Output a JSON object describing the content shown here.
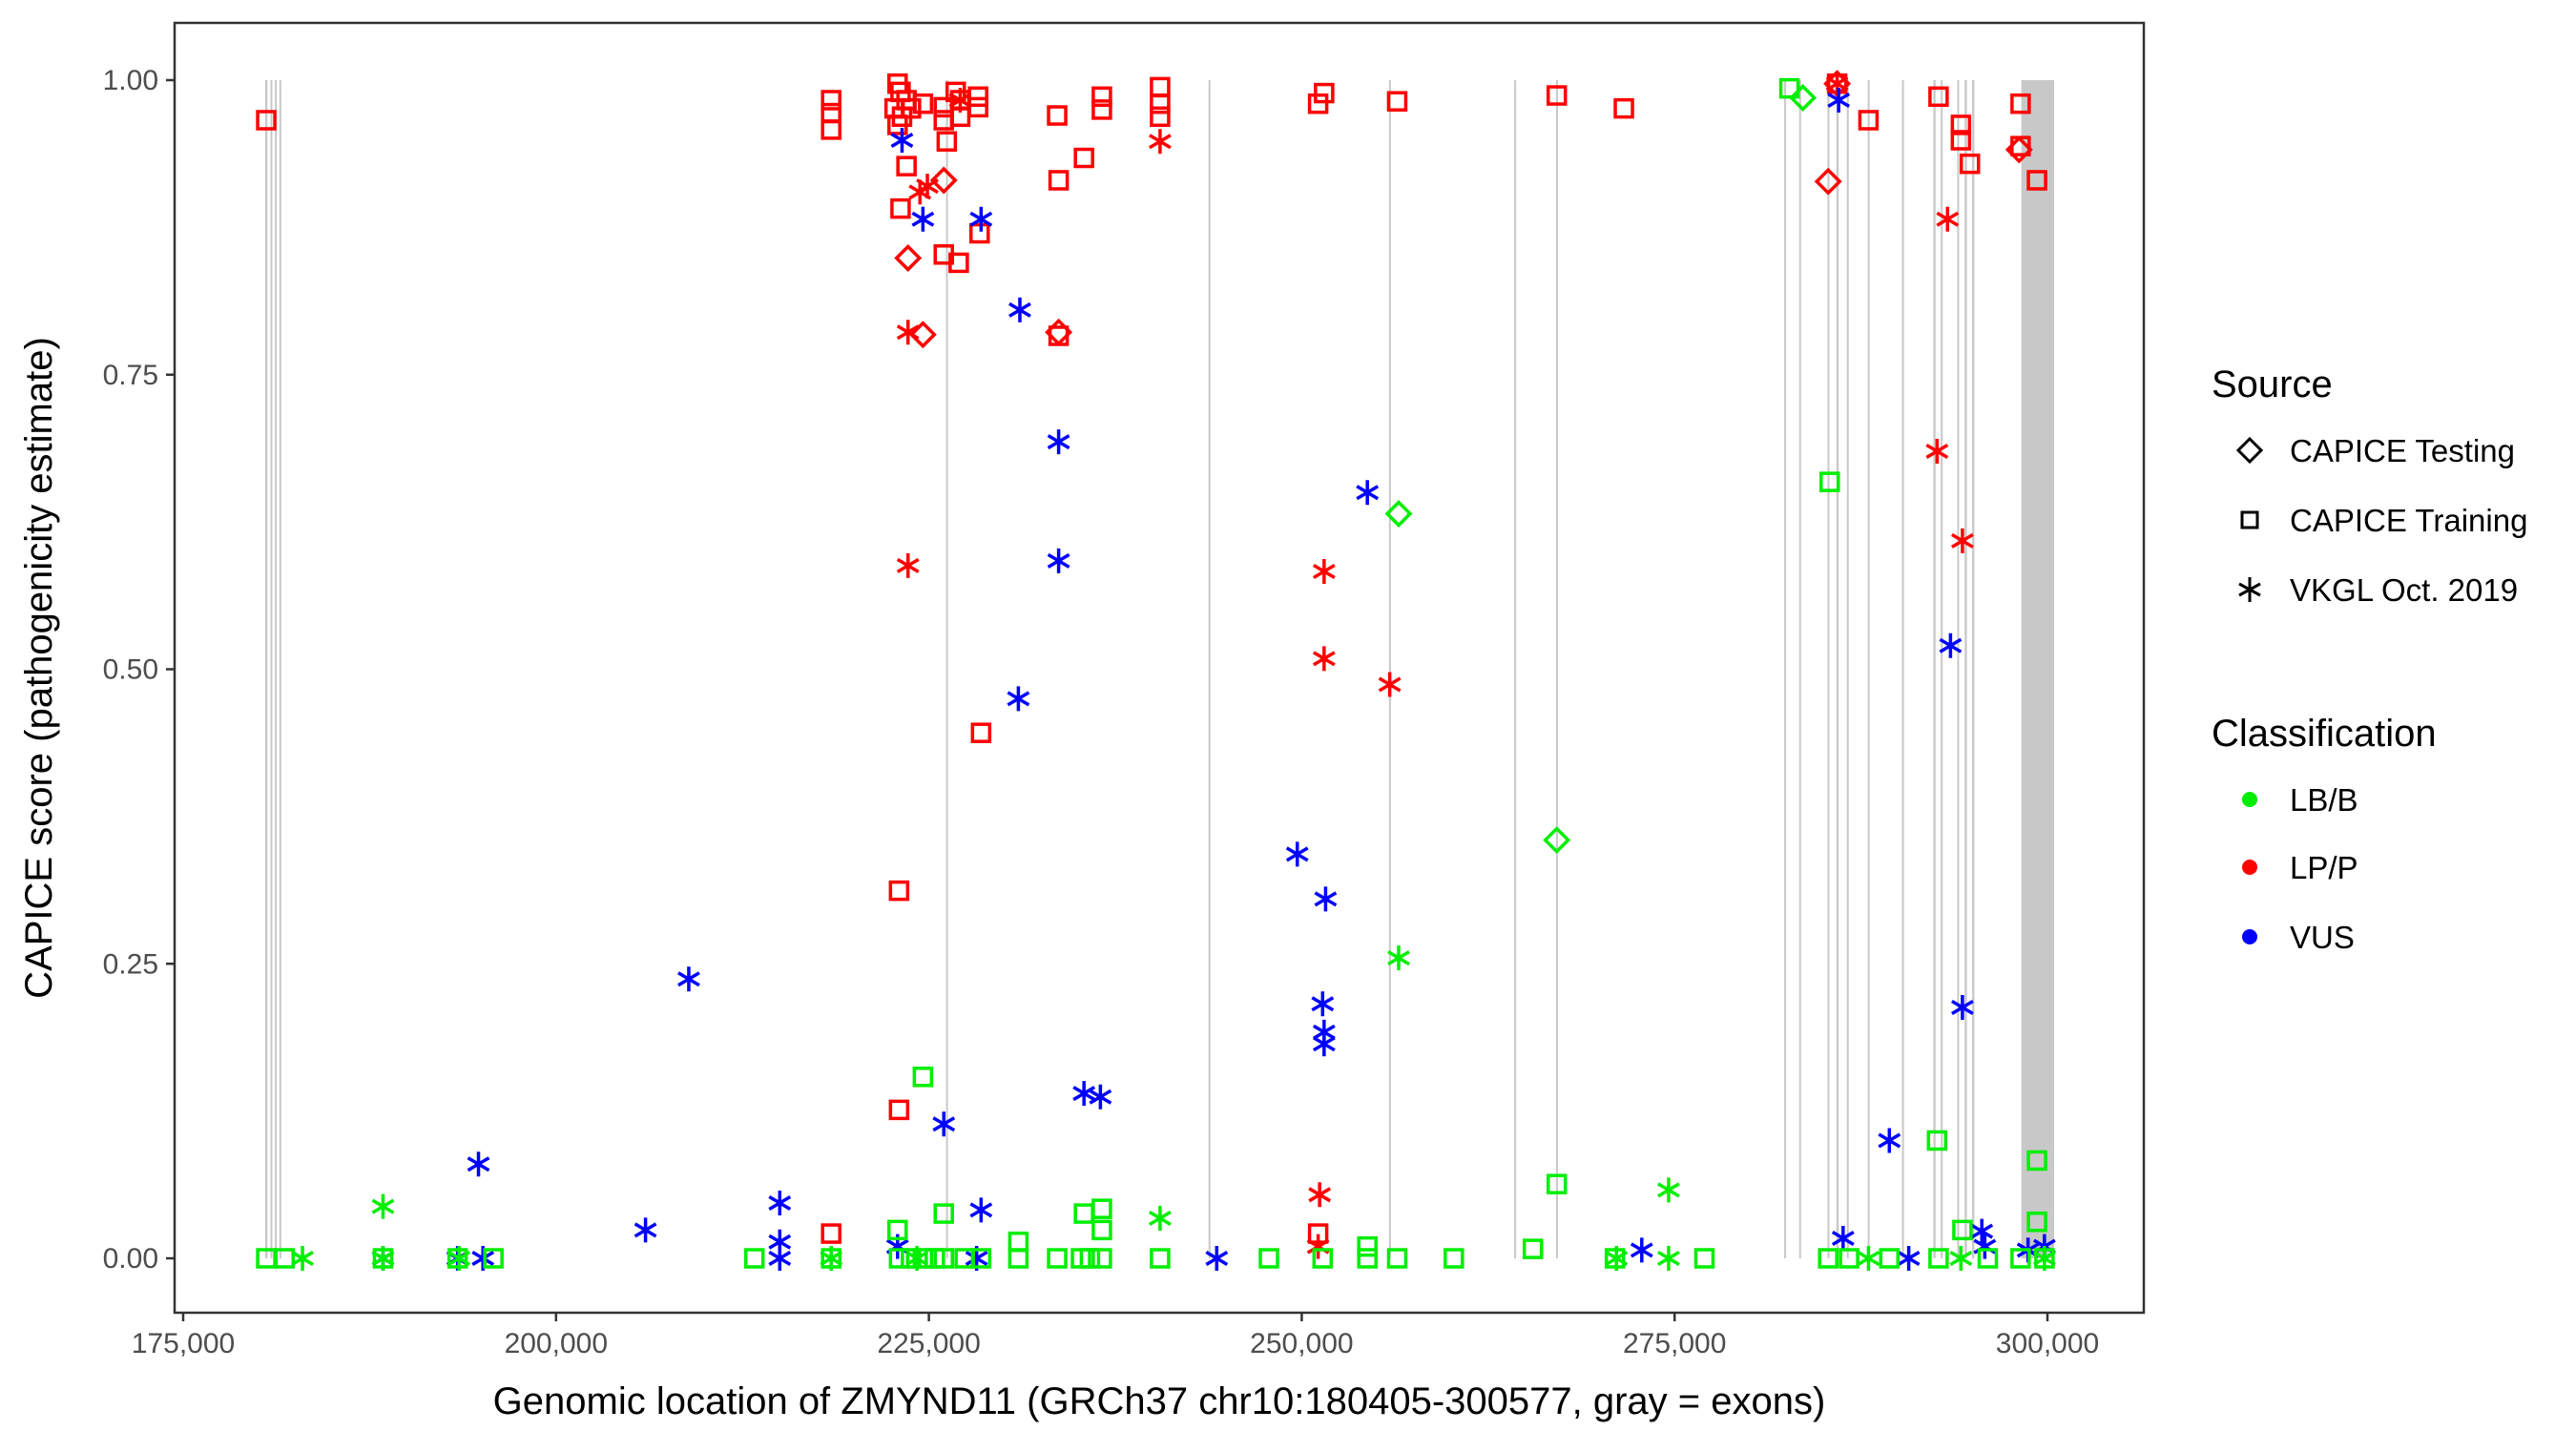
{
  "chart_data": {
    "type": "scatter",
    "title": "",
    "xlabel": "Genomic location of ZMYND11 (GRCh37 chr10:180405-300577, gray = exons)",
    "ylabel": "CAPICE score (pathogenicity estimate)",
    "xlim": [
      172500,
      302500
    ],
    "ylim": [
      -0.045,
      1.05
    ],
    "x_ticks": [
      175000,
      200000,
      225000,
      250000,
      275000,
      300000
    ],
    "x_tick_labels": [
      "175,000",
      "200,000",
      "225,000",
      "250,000",
      "275,000",
      "300,000"
    ],
    "y_ticks": [
      0,
      0.25,
      0.5,
      0.75,
      1.0
    ],
    "y_tick_labels": [
      "0.00",
      "0.25",
      "0.50",
      "0.75",
      "1.00"
    ],
    "grid": false,
    "exon_color": "#c8c8c8",
    "exons": [
      [
        180500,
        180650
      ],
      [
        180850,
        180950
      ],
      [
        181150,
        181250
      ],
      [
        181450,
        181550
      ],
      [
        226150,
        226250
      ],
      [
        243750,
        243850
      ],
      [
        255850,
        255950
      ],
      [
        264250,
        264350
      ],
      [
        267050,
        267150
      ],
      [
        282350,
        282450
      ],
      [
        283350,
        283450
      ],
      [
        285250,
        285350
      ],
      [
        285850,
        286000
      ],
      [
        286550,
        286650
      ],
      [
        287950,
        288050
      ],
      [
        290250,
        290350
      ],
      [
        292350,
        292500
      ],
      [
        292850,
        292950
      ],
      [
        293950,
        294050
      ],
      [
        294450,
        294600
      ],
      [
        294950,
        295100
      ],
      [
        298250,
        300450
      ]
    ],
    "legend_position": "right",
    "legends": [
      {
        "title": "Source",
        "items": [
          {
            "label": "CAPICE Testing",
            "shape": "diamond"
          },
          {
            "label": "CAPICE Training",
            "shape": "square"
          },
          {
            "label": "VKGL Oct. 2019",
            "shape": "asterisk"
          }
        ]
      },
      {
        "title": "Classification",
        "items": [
          {
            "label": "LB/B",
            "color": "#00ee00"
          },
          {
            "label": "LP/P",
            "color": "#ff0000"
          },
          {
            "label": "VUS",
            "color": "#0000ff"
          }
        ]
      }
    ],
    "point_fields": [
      "position",
      "score",
      "source",
      "classification"
    ],
    "points": [
      [
        180570,
        0.966,
        "CAPICE Training",
        "LP/P"
      ],
      [
        218450,
        0.983,
        "CAPICE Training",
        "LP/P"
      ],
      [
        218450,
        0.972,
        "CAPICE Training",
        "LP/P"
      ],
      [
        218450,
        0.958,
        "CAPICE Training",
        "LP/P"
      ],
      [
        222900,
        0.997,
        "CAPICE Training",
        "LP/P"
      ],
      [
        223100,
        0.99,
        "CAPICE Training",
        "LP/P"
      ],
      [
        223500,
        0.983,
        "CAPICE Training",
        "LP/P"
      ],
      [
        222700,
        0.976,
        "CAPICE Training",
        "LP/P"
      ],
      [
        223200,
        0.969,
        "CAPICE Training",
        "LP/P"
      ],
      [
        223800,
        0.976,
        "CAPICE Training",
        "LP/P"
      ],
      [
        222900,
        0.962,
        "CAPICE Training",
        "LP/P"
      ],
      [
        224600,
        0.98,
        "CAPICE Training",
        "LP/P"
      ],
      [
        226000,
        0.977,
        "CAPICE Training",
        "LP/P"
      ],
      [
        226000,
        0.966,
        "CAPICE Training",
        "LP/P"
      ],
      [
        226200,
        0.948,
        "CAPICE Training",
        "LP/P"
      ],
      [
        226800,
        0.99,
        "CAPICE Training",
        "LP/P"
      ],
      [
        227100,
        0.983,
        "CAPICE Training",
        "LP/P"
      ],
      [
        227100,
        0.969,
        "CAPICE Training",
        "LP/P"
      ],
      [
        228300,
        0.986,
        "CAPICE Training",
        "LP/P"
      ],
      [
        228300,
        0.977,
        "CAPICE Training",
        "LP/P"
      ],
      [
        223500,
        0.927,
        "CAPICE Training",
        "LP/P"
      ],
      [
        223100,
        0.891,
        "CAPICE Training",
        "LP/P"
      ],
      [
        226000,
        0.852,
        "CAPICE Training",
        "LP/P"
      ],
      [
        227000,
        0.845,
        "CAPICE Training",
        "LP/P"
      ],
      [
        228400,
        0.87,
        "CAPICE Training",
        "LP/P"
      ],
      [
        233700,
        0.783,
        "CAPICE Training",
        "LP/P"
      ],
      [
        233600,
        0.97,
        "CAPICE Training",
        "LP/P"
      ],
      [
        233700,
        0.915,
        "CAPICE Training",
        "LP/P"
      ],
      [
        235400,
        0.934,
        "CAPICE Training",
        "LP/P"
      ],
      [
        236600,
        0.986,
        "CAPICE Training",
        "LP/P"
      ],
      [
        236600,
        0.975,
        "CAPICE Training",
        "LP/P"
      ],
      [
        240500,
        0.994,
        "CAPICE Training",
        "LP/P"
      ],
      [
        240500,
        0.98,
        "CAPICE Training",
        "LP/P"
      ],
      [
        240500,
        0.969,
        "CAPICE Training",
        "LP/P"
      ],
      [
        251500,
        0.989,
        "CAPICE Training",
        "LP/P"
      ],
      [
        251100,
        0.98,
        "CAPICE Training",
        "LP/P"
      ],
      [
        256400,
        0.982,
        "CAPICE Training",
        "LP/P"
      ],
      [
        267100,
        0.987,
        "CAPICE Training",
        "LP/P"
      ],
      [
        271600,
        0.976,
        "CAPICE Training",
        "LP/P"
      ],
      [
        288000,
        0.966,
        "CAPICE Training",
        "LP/P"
      ],
      [
        292700,
        0.986,
        "CAPICE Training",
        "LP/P"
      ],
      [
        294200,
        0.962,
        "CAPICE Training",
        "LP/P"
      ],
      [
        294200,
        0.949,
        "CAPICE Training",
        "LP/P"
      ],
      [
        294800,
        0.929,
        "CAPICE Training",
        "LP/P"
      ],
      [
        298200,
        0.98,
        "CAPICE Training",
        "LP/P"
      ],
      [
        298200,
        0.944,
        "CAPICE Training",
        "LP/P"
      ],
      [
        299300,
        0.915,
        "CAPICE Training",
        "LP/P"
      ],
      [
        228500,
        0.446,
        "CAPICE Training",
        "LP/P"
      ],
      [
        223000,
        0.312,
        "CAPICE Training",
        "LP/P"
      ],
      [
        223000,
        0.126,
        "CAPICE Training",
        "LP/P"
      ],
      [
        218450,
        0.021,
        "CAPICE Training",
        "LP/P"
      ],
      [
        251100,
        0.021,
        "CAPICE Training",
        "LP/P"
      ],
      [
        285900,
        0.997,
        "CAPICE Training",
        "LP/P"
      ],
      [
        223600,
        0.849,
        "CAPICE Testing",
        "LP/P"
      ],
      [
        224600,
        0.784,
        "CAPICE Testing",
        "LP/P"
      ],
      [
        226000,
        0.915,
        "CAPICE Testing",
        "LP/P"
      ],
      [
        233700,
        0.786,
        "CAPICE Testing",
        "LP/P"
      ],
      [
        285300,
        0.914,
        "CAPICE Testing",
        "LP/P"
      ],
      [
        285900,
        0.997,
        "CAPICE Testing",
        "LP/P"
      ],
      [
        298100,
        0.941,
        "CAPICE Testing",
        "LP/P"
      ],
      [
        223600,
        0.786,
        "VKGL Oct. 2019",
        "LP/P"
      ],
      [
        224400,
        0.905,
        "VKGL Oct. 2019",
        "LP/P"
      ],
      [
        224900,
        0.91,
        "VKGL Oct. 2019",
        "LP/P"
      ],
      [
        227100,
        0.983,
        "VKGL Oct. 2019",
        "LP/P"
      ],
      [
        240500,
        0.948,
        "VKGL Oct. 2019",
        "LP/P"
      ],
      [
        223600,
        0.588,
        "VKGL Oct. 2019",
        "LP/P"
      ],
      [
        251500,
        0.583,
        "VKGL Oct. 2019",
        "LP/P"
      ],
      [
        251500,
        0.509,
        "VKGL Oct. 2019",
        "LP/P"
      ],
      [
        255900,
        0.487,
        "VKGL Oct. 2019",
        "LP/P"
      ],
      [
        251200,
        0.054,
        "VKGL Oct. 2019",
        "LP/P"
      ],
      [
        251100,
        0.01,
        "VKGL Oct. 2019",
        "LP/P"
      ],
      [
        292600,
        0.685,
        "VKGL Oct. 2019",
        "LP/P"
      ],
      [
        293300,
        0.882,
        "VKGL Oct. 2019",
        "LP/P"
      ],
      [
        294300,
        0.609,
        "VKGL Oct. 2019",
        "LP/P"
      ],
      [
        285900,
        0.997,
        "VKGL Oct. 2019",
        "LP/P"
      ],
      [
        223200,
        0.949,
        "VKGL Oct. 2019",
        "VUS"
      ],
      [
        224600,
        0.882,
        "VKGL Oct. 2019",
        "VUS"
      ],
      [
        228500,
        0.882,
        "VKGL Oct. 2019",
        "VUS"
      ],
      [
        231100,
        0.805,
        "VKGL Oct. 2019",
        "VUS"
      ],
      [
        233700,
        0.693,
        "VKGL Oct. 2019",
        "VUS"
      ],
      [
        233700,
        0.592,
        "VKGL Oct. 2019",
        "VUS"
      ],
      [
        231000,
        0.475,
        "VKGL Oct. 2019",
        "VUS"
      ],
      [
        254400,
        0.65,
        "VKGL Oct. 2019",
        "VUS"
      ],
      [
        249700,
        0.343,
        "VKGL Oct. 2019",
        "VUS"
      ],
      [
        251600,
        0.305,
        "VKGL Oct. 2019",
        "VUS"
      ],
      [
        251400,
        0.216,
        "VKGL Oct. 2019",
        "VUS"
      ],
      [
        251500,
        0.192,
        "VKGL Oct. 2019",
        "VUS"
      ],
      [
        251500,
        0.182,
        "VKGL Oct. 2019",
        "VUS"
      ],
      [
        208900,
        0.237,
        "VKGL Oct. 2019",
        "VUS"
      ],
      [
        194800,
        0.08,
        "VKGL Oct. 2019",
        "VUS"
      ],
      [
        206000,
        0.024,
        "VKGL Oct. 2019",
        "VUS"
      ],
      [
        215000,
        0.047,
        "VKGL Oct. 2019",
        "VUS"
      ],
      [
        215000,
        0.014,
        "VKGL Oct. 2019",
        "VUS"
      ],
      [
        215000,
        0.0,
        "VKGL Oct. 2019",
        "VUS"
      ],
      [
        226000,
        0.114,
        "VKGL Oct. 2019",
        "VUS"
      ],
      [
        235400,
        0.14,
        "VKGL Oct. 2019",
        "VUS"
      ],
      [
        236500,
        0.137,
        "VKGL Oct. 2019",
        "VUS"
      ],
      [
        228500,
        0.041,
        "VKGL Oct. 2019",
        "VUS"
      ],
      [
        222900,
        0.01,
        "VKGL Oct. 2019",
        "VUS"
      ],
      [
        188400,
        0.0,
        "VKGL Oct. 2019",
        "VUS"
      ],
      [
        193400,
        0.0,
        "VKGL Oct. 2019",
        "VUS"
      ],
      [
        195100,
        0.0,
        "VKGL Oct. 2019",
        "VUS"
      ],
      [
        228200,
        0.0,
        "VKGL Oct. 2019",
        "VUS"
      ],
      [
        244300,
        0.0,
        "VKGL Oct. 2019",
        "VUS"
      ],
      [
        272800,
        0.007,
        "VKGL Oct. 2019",
        "VUS"
      ],
      [
        286000,
        0.983,
        "VKGL Oct. 2019",
        "VUS"
      ],
      [
        293500,
        0.52,
        "VKGL Oct. 2019",
        "VUS"
      ],
      [
        294300,
        0.213,
        "VKGL Oct. 2019",
        "VUS"
      ],
      [
        289400,
        0.1,
        "VKGL Oct. 2019",
        "VUS"
      ],
      [
        286300,
        0.017,
        "VKGL Oct. 2019",
        "VUS"
      ],
      [
        290700,
        0.0,
        "VKGL Oct. 2019",
        "VUS"
      ],
      [
        295600,
        0.023,
        "VKGL Oct. 2019",
        "VUS"
      ],
      [
        295800,
        0.01,
        "VKGL Oct. 2019",
        "VUS"
      ],
      [
        298700,
        0.007,
        "VKGL Oct. 2019",
        "VUS"
      ],
      [
        299800,
        0.01,
        "VKGL Oct. 2019",
        "VUS"
      ],
      [
        282700,
        0.993,
        "CAPICE Training",
        "LB/B"
      ],
      [
        285400,
        0.659,
        "CAPICE Training",
        "LB/B"
      ],
      [
        267100,
        0.063,
        "CAPICE Training",
        "LB/B"
      ],
      [
        292600,
        0.1,
        "CAPICE Training",
        "LB/B"
      ],
      [
        299300,
        0.083,
        "CAPICE Training",
        "LB/B"
      ],
      [
        299300,
        0.031,
        "CAPICE Training",
        "LB/B"
      ],
      [
        294300,
        0.024,
        "CAPICE Training",
        "LB/B"
      ],
      [
        224600,
        0.154,
        "CAPICE Training",
        "LB/B"
      ],
      [
        226000,
        0.038,
        "CAPICE Training",
        "LB/B"
      ],
      [
        222900,
        0.024,
        "CAPICE Training",
        "LB/B"
      ],
      [
        235400,
        0.038,
        "CAPICE Training",
        "LB/B"
      ],
      [
        236600,
        0.042,
        "CAPICE Training",
        "LB/B"
      ],
      [
        236600,
        0.024,
        "CAPICE Training",
        "LB/B"
      ],
      [
        231000,
        0.014,
        "CAPICE Training",
        "LB/B"
      ],
      [
        265500,
        0.008,
        "CAPICE Training",
        "LB/B"
      ],
      [
        254400,
        0.01,
        "CAPICE Training",
        "LB/B"
      ],
      [
        180570,
        0.0,
        "CAPICE Training",
        "LB/B"
      ],
      [
        181800,
        0.0,
        "CAPICE Training",
        "LB/B"
      ],
      [
        188400,
        0.0,
        "CAPICE Training",
        "LB/B"
      ],
      [
        193400,
        0.0,
        "CAPICE Training",
        "LB/B"
      ],
      [
        195800,
        0.0,
        "CAPICE Training",
        "LB/B"
      ],
      [
        213300,
        0.0,
        "CAPICE Training",
        "LB/B"
      ],
      [
        218450,
        0.0,
        "CAPICE Training",
        "LB/B"
      ],
      [
        223000,
        0.0,
        "CAPICE Training",
        "LB/B"
      ],
      [
        223800,
        0.0,
        "CAPICE Training",
        "LB/B"
      ],
      [
        224600,
        0.0,
        "CAPICE Training",
        "LB/B"
      ],
      [
        225400,
        0.0,
        "CAPICE Training",
        "LB/B"
      ],
      [
        226000,
        0.0,
        "CAPICE Training",
        "LB/B"
      ],
      [
        227400,
        0.0,
        "CAPICE Training",
        "LB/B"
      ],
      [
        228500,
        0.0,
        "CAPICE Training",
        "LB/B"
      ],
      [
        231000,
        0.0,
        "CAPICE Training",
        "LB/B"
      ],
      [
        233600,
        0.0,
        "CAPICE Training",
        "LB/B"
      ],
      [
        235200,
        0.0,
        "CAPICE Training",
        "LB/B"
      ],
      [
        235800,
        0.0,
        "CAPICE Training",
        "LB/B"
      ],
      [
        236600,
        0.0,
        "CAPICE Training",
        "LB/B"
      ],
      [
        240500,
        0.0,
        "CAPICE Training",
        "LB/B"
      ],
      [
        247800,
        0.0,
        "CAPICE Training",
        "LB/B"
      ],
      [
        251400,
        0.0,
        "CAPICE Training",
        "LB/B"
      ],
      [
        254400,
        0.0,
        "CAPICE Training",
        "LB/B"
      ],
      [
        256400,
        0.0,
        "CAPICE Training",
        "LB/B"
      ],
      [
        260200,
        0.0,
        "CAPICE Training",
        "LB/B"
      ],
      [
        271000,
        0.0,
        "CAPICE Training",
        "LB/B"
      ],
      [
        277000,
        0.0,
        "CAPICE Training",
        "LB/B"
      ],
      [
        285300,
        0.0,
        "CAPICE Training",
        "LB/B"
      ],
      [
        286700,
        0.0,
        "CAPICE Training",
        "LB/B"
      ],
      [
        289400,
        0.0,
        "CAPICE Training",
        "LB/B"
      ],
      [
        292700,
        0.0,
        "CAPICE Training",
        "LB/B"
      ],
      [
        296000,
        0.0,
        "CAPICE Training",
        "LB/B"
      ],
      [
        298200,
        0.0,
        "CAPICE Training",
        "LB/B"
      ],
      [
        299800,
        0.0,
        "CAPICE Training",
        "LB/B"
      ],
      [
        283600,
        0.985,
        "CAPICE Testing",
        "LB/B"
      ],
      [
        256500,
        0.632,
        "CAPICE Testing",
        "LB/B"
      ],
      [
        267100,
        0.355,
        "CAPICE Testing",
        "LB/B"
      ],
      [
        188400,
        0.044,
        "VKGL Oct. 2019",
        "LB/B"
      ],
      [
        183000,
        0.0,
        "VKGL Oct. 2019",
        "LB/B"
      ],
      [
        188400,
        0.0,
        "VKGL Oct. 2019",
        "LB/B"
      ],
      [
        256500,
        0.255,
        "VKGL Oct. 2019",
        "LB/B"
      ],
      [
        240500,
        0.034,
        "VKGL Oct. 2019",
        "LB/B"
      ],
      [
        274600,
        0.058,
        "VKGL Oct. 2019",
        "LB/B"
      ],
      [
        274600,
        0.0,
        "VKGL Oct. 2019",
        "LB/B"
      ],
      [
        193500,
        0.0,
        "VKGL Oct. 2019",
        "LB/B"
      ],
      [
        218450,
        0.0,
        "VKGL Oct. 2019",
        "LB/B"
      ],
      [
        271100,
        0.0,
        "VKGL Oct. 2019",
        "LB/B"
      ],
      [
        294200,
        0.0,
        "VKGL Oct. 2019",
        "LB/B"
      ],
      [
        299800,
        0.0,
        "VKGL Oct. 2019",
        "LB/B"
      ],
      [
        224200,
        0.0,
        "VKGL Oct. 2019",
        "LB/B"
      ],
      [
        288000,
        0.0,
        "VKGL Oct. 2019",
        "LB/B"
      ]
    ]
  }
}
